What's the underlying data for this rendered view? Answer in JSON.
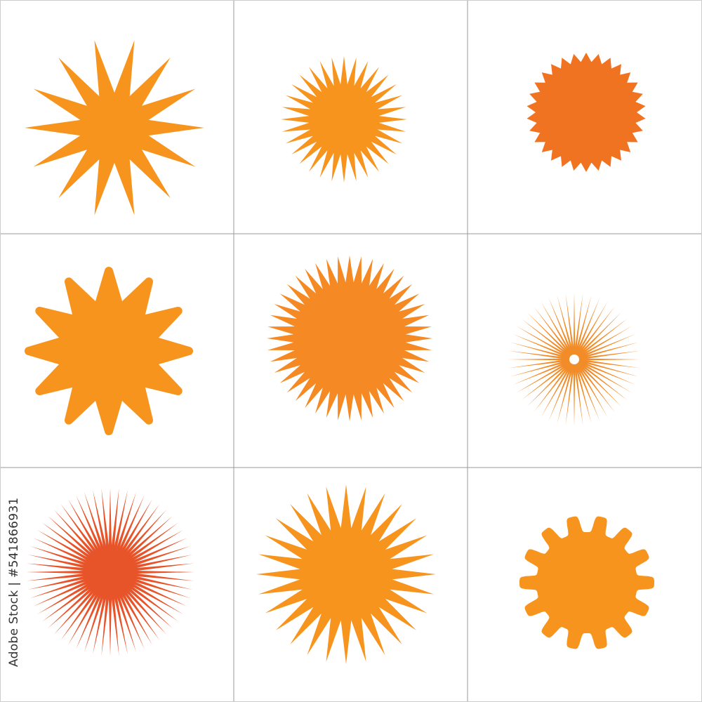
{
  "grid": {
    "rows": 3,
    "cols": 3,
    "line_color": "#9a9a9a"
  },
  "watermark": {
    "credit": "Adobe Stock | #541866931"
  },
  "shapes": [
    {
      "name": "star-14-point",
      "style": "spike",
      "points": 14,
      "color": "#F7941D"
    },
    {
      "name": "star-32-point",
      "style": "spike",
      "points": 32,
      "color": "#F7941D"
    },
    {
      "name": "seal-30-point",
      "style": "seal",
      "points": 30,
      "color": "#F07321"
    },
    {
      "name": "star-12-point-rounded",
      "style": "rounded",
      "points": 12,
      "color": "#F7941D"
    },
    {
      "name": "sunburst-44-point",
      "style": "spike",
      "points": 44,
      "color": "#F58A24"
    },
    {
      "name": "ray-burst-thin",
      "style": "rays",
      "points": 48,
      "color": "#F28C28"
    },
    {
      "name": "ray-burst-disk",
      "style": "rays",
      "points": 60,
      "color": "#E8542A"
    },
    {
      "name": "star-28-point",
      "style": "spike",
      "points": 28,
      "color": "#F7941D"
    },
    {
      "name": "gear-badge-14",
      "style": "gear",
      "points": 14,
      "color": "#F7941D"
    }
  ]
}
